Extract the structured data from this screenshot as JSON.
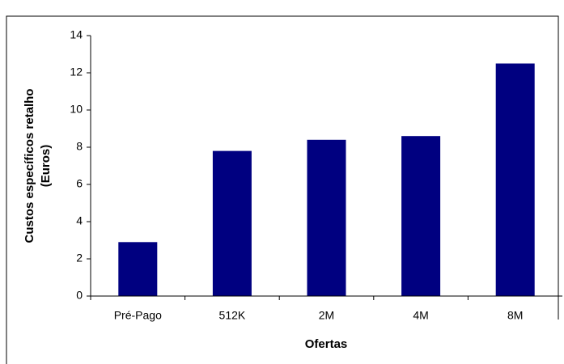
{
  "chart_data": {
    "type": "bar",
    "x_label": "Ofertas",
    "y_label": [
      "Custos específicos retalho",
      "(Euros)"
    ],
    "categories": [
      "Pré-Pago",
      "512K",
      "2M",
      "4M",
      "8M"
    ],
    "values": [
      2.9,
      7.8,
      8.4,
      8.6,
      12.5
    ],
    "color": "#000080",
    "ylim": [
      0,
      14
    ],
    "yticks": [
      0,
      2,
      4,
      6,
      8,
      10,
      12,
      14
    ],
    "grid": false
  }
}
